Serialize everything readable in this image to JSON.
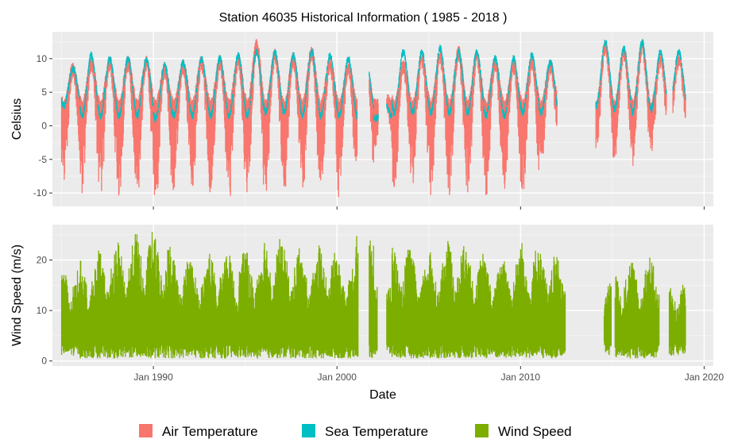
{
  "chart_data": {
    "type": "line",
    "title": "Station 46035 Historical Information ( 1985 - 2018 )",
    "xlabel": "Date",
    "x_ticks": [
      "Jan 1990",
      "Jan 2000",
      "Jan 2010",
      "Jan 2020"
    ],
    "x_range": [
      1984.5,
      2020.5
    ],
    "grid": true,
    "legend_position": "bottom",
    "legend": [
      {
        "name": "Air Temperature",
        "color": "#F8766D"
      },
      {
        "name": "Sea Temperature",
        "color": "#00BFC4"
      },
      {
        "name": "Wind Speed",
        "color": "#7CAE00"
      }
    ],
    "panels": [
      {
        "ylabel": "Celsius",
        "ylim": [
          -12,
          14
        ],
        "y_ticks": [
          "10",
          "5",
          "0",
          "-5",
          "-10"
        ],
        "y_values": [
          10,
          5,
          0,
          -5,
          -10
        ],
        "series": [
          {
            "name": "Air Temperature",
            "color": "#F8766D",
            "unit": "yearly",
            "years": [
              1985,
              1986,
              1987,
              1988,
              1989,
              1990,
              1991,
              1992,
              1993,
              1994,
              1995,
              1996,
              1997,
              1998,
              1999,
              2000,
              2001,
              2002,
              2003,
              2004,
              2005,
              2006,
              2007,
              2008,
              2009,
              2010,
              2011,
              2014,
              2015,
              2016,
              2017,
              2018
            ],
            "summer_max": [
              8.5,
              9.5,
              9.5,
              9.5,
              9.5,
              8.5,
              9,
              9.5,
              9.5,
              10,
              12,
              10.5,
              10,
              11,
              9.5,
              9,
              7.5,
              4,
              9,
              10,
              10.5,
              11,
              10.5,
              9.5,
              9,
              9.5,
              9,
              12,
              11,
              12,
              10,
              10
            ],
            "winter_min": [
              -7,
              -9.5,
              -10.5,
              -10.5,
              -9.5,
              -11.5,
              -9.5,
              -9.5,
              -9.5,
              -11,
              -10.5,
              -9,
              -9,
              -9.5,
              -9,
              -9.5,
              -8.5,
              -3,
              -9.5,
              -10,
              -9.5,
              -11,
              -10,
              -10.5,
              -9,
              -10.5,
              -5,
              -4,
              -4.5,
              -5,
              -3.5,
              -1.5
            ]
          },
          {
            "name": "Sea Temperature",
            "color": "#00BFC4",
            "unit": "yearly",
            "years": [
              1985,
              1986,
              1987,
              1988,
              1989,
              1990,
              1991,
              1992,
              1993,
              1994,
              1995,
              1996,
              1997,
              1998,
              1999,
              2000,
              2001,
              2002,
              2003,
              2004,
              2005,
              2006,
              2007,
              2008,
              2009,
              2010,
              2011,
              2014,
              2015,
              2016,
              2017,
              2018
            ],
            "summer_max": [
              8.5,
              10.5,
              10,
              10,
              10,
              9,
              9.5,
              10,
              10,
              10.5,
              11,
              11,
              10.5,
              11,
              10.5,
              10,
              9,
              3,
              11,
              11,
              11.5,
              11,
              11,
              10,
              10,
              10.5,
              9.5,
              12.5,
              11.5,
              12.5,
              11,
              11
            ],
            "winter_min": [
              3,
              1.5,
              1.5,
              1.5,
              1.5,
              1,
              1.5,
              1.5,
              1.5,
              1.5,
              1.5,
              2,
              2,
              1.5,
              1.5,
              1.5,
              1.5,
              1,
              2,
              2,
              2,
              2,
              2,
              1.5,
              1.5,
              2,
              2,
              3,
              2.5,
              2,
              2.5,
              3
            ]
          }
        ],
        "gaps": [
          [
            2001.1,
            2001.75
          ],
          [
            2002.25,
            2002.7
          ],
          [
            2012.7,
            2014.1
          ],
          [
            2017.95,
            2018.3
          ]
        ]
      },
      {
        "ylabel": "Wind Speed (m/s)",
        "ylim": [
          -1,
          27
        ],
        "y_ticks": [
          "20",
          "10",
          "0"
        ],
        "y_values": [
          20,
          10,
          0
        ],
        "series": [
          {
            "name": "Wind Speed",
            "color": "#7CAE00",
            "unit": "m/s",
            "years": [
              1985,
              1986,
              1987,
              1988,
              1989,
              1990,
              1991,
              1992,
              1993,
              1994,
              1995,
              1996,
              1997,
              1998,
              1999,
              2000,
              2001,
              2002,
              2003,
              2004,
              2005,
              2006,
              2007,
              2008,
              2009,
              2010,
              2011,
              2012,
              2014,
              2015,
              2016,
              2017,
              2018
            ],
            "annual_max": [
              19,
              20,
              22,
              24,
              26,
              25,
              21,
              20,
              22,
              22,
              22,
              25,
              23,
              21,
              23,
              20,
              26,
              16,
              23,
              21,
              22,
              24,
              22,
              20,
              22,
              24,
              22,
              20,
              17,
              19,
              20,
              21,
              16
            ],
            "annual_min": [
              1,
              0.5,
              0.5,
              0.5,
              0.5,
              0.5,
              0.5,
              0.5,
              0.5,
              0.5,
              0.5,
              0.5,
              0.5,
              0.5,
              0.5,
              0.5,
              0.5,
              1,
              0.5,
              0.5,
              0.5,
              0.5,
              0.5,
              0.5,
              0.5,
              0.5,
              0.5,
              1,
              1,
              0.5,
              0.5,
              0.5,
              1
            ]
          }
        ],
        "gaps": [
          [
            2001.15,
            2001.75
          ],
          [
            2002.2,
            2002.7
          ],
          [
            2012.45,
            2014.55
          ],
          [
            2014.95,
            2015.15
          ],
          [
            2017.55,
            2018.1
          ]
        ]
      }
    ]
  }
}
